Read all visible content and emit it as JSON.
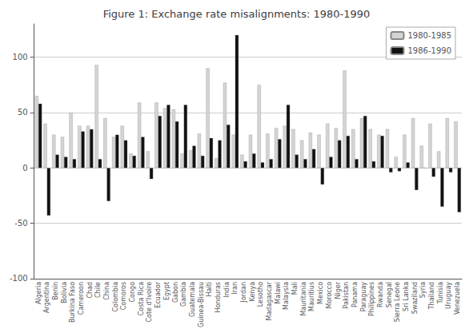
{
  "chart_data": {
    "type": "bar",
    "title": "Figure 1: Exchange rate misalignments: 1980-1990",
    "categories": [
      "Algeria",
      "Argentina",
      "Benin",
      "Bolivia",
      "Burkina Faso",
      "Cameroon",
      "Chad",
      "Chile",
      "China",
      "Colombia",
      "Comoros",
      "Congo",
      "Costa Rica",
      "Cote d'Ivoire",
      "Ecuador",
      "Egypt",
      "Gabon",
      "Gambia",
      "Guatemala",
      "Guinea-Bissau",
      "Haiti",
      "Honduras",
      "India",
      "Iran",
      "Jordan",
      "Kenya",
      "Lesotho",
      "Madagascar",
      "Malawi",
      "Malaysia",
      "Mali",
      "Mauritania",
      "Mauritius",
      "Mexico",
      "Morocco",
      "Niger",
      "Pakistan",
      "Panama",
      "Paraguay",
      "Philippines",
      "Rwanda",
      "Senegal",
      "Sierra Leone",
      "Sri Lanka",
      "Swaziland",
      "Syria",
      "Thailand",
      "Tunisia",
      "Uruguay",
      "Venezuela"
    ],
    "series": [
      {
        "name": "1980-1985",
        "color": "#d4d4d4",
        "values": [
          65,
          40,
          30,
          28,
          50,
          38,
          38,
          93,
          45,
          28,
          38,
          13,
          59,
          15,
          59,
          54,
          53,
          13,
          16,
          31,
          90,
          9,
          77,
          30,
          12,
          30,
          75,
          31,
          36,
          38,
          35,
          25,
          32,
          30,
          40,
          36,
          88,
          35,
          45,
          35,
          30,
          35,
          10,
          30,
          45,
          20,
          40,
          15,
          45,
          42
        ]
      },
      {
        "name": "1986-1990",
        "color": "#111111",
        "values": [
          58,
          -43,
          12,
          10,
          8,
          33,
          35,
          8,
          -30,
          30,
          25,
          11,
          28,
          -10,
          47,
          57,
          42,
          57,
          20,
          11,
          27,
          25,
          39,
          120,
          6,
          13,
          5,
          8,
          26,
          57,
          12,
          8,
          17,
          -15,
          10,
          25,
          29,
          8,
          47,
          6,
          29,
          -4,
          -3,
          5,
          -20,
          0,
          -8,
          -35,
          -4,
          -40
        ]
      }
    ],
    "ylim": [
      -100,
      130
    ],
    "yticks": [
      -100,
      -50,
      0,
      50,
      100
    ],
    "grid": true,
    "legend": "upper right"
  }
}
